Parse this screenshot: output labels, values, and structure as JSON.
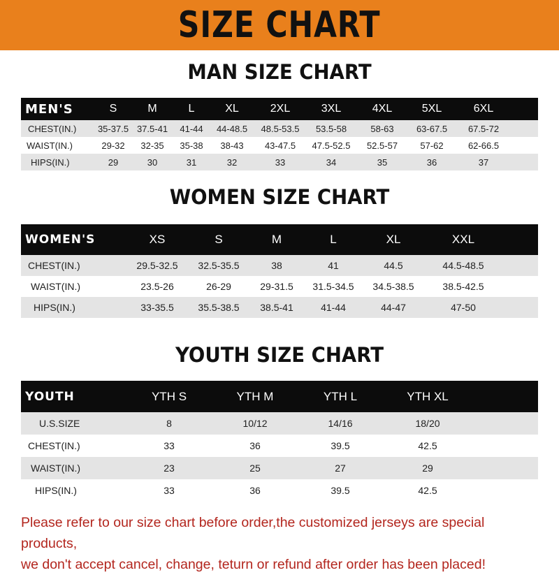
{
  "banner": {
    "title": "SIZE CHART",
    "color": "#e9801c"
  },
  "men": {
    "title": "MAN SIZE CHART",
    "header": [
      "MEN'S",
      "S",
      "M",
      "L",
      "XL",
      "2XL",
      "3XL",
      "4XL",
      "5XL",
      "6XL"
    ],
    "rows": [
      [
        "CHEST(IN.)",
        "35-37.5",
        "37.5-41",
        "41-44",
        "44-48.5",
        "48.5-53.5",
        "53.5-58",
        "58-63",
        "63-67.5",
        "67.5-72"
      ],
      [
        "WAIST(IN.)",
        "29-32",
        "32-35",
        "35-38",
        "38-43",
        "43-47.5",
        "47.5-52.5",
        "52.5-57",
        "57-62",
        "62-66.5"
      ],
      [
        "HIPS(IN.)",
        "29",
        "30",
        "31",
        "32",
        "33",
        "34",
        "35",
        "36",
        "37"
      ]
    ]
  },
  "women": {
    "title": "WOMEN SIZE CHART",
    "header": [
      "WOMEN'S",
      "XS",
      "S",
      "M",
      "L",
      "XL",
      "XXL"
    ],
    "rows": [
      [
        "CHEST(IN.)",
        "29.5-32.5",
        "32.5-35.5",
        "38",
        "41",
        "44.5",
        "44.5-48.5"
      ],
      [
        "WAIST(IN.)",
        "23.5-26",
        "26-29",
        "29-31.5",
        "31.5-34.5",
        "34.5-38.5",
        "38.5-42.5"
      ],
      [
        "HIPS(IN.)",
        "33-35.5",
        "35.5-38.5",
        "38.5-41",
        "41-44",
        "44-47",
        "47-50"
      ]
    ]
  },
  "youth": {
    "title": "YOUTH SIZE CHART",
    "header": [
      "YOUTH",
      "YTH S",
      "YTH M",
      "YTH L",
      "YTH XL"
    ],
    "rows": [
      [
        "U.S.SIZE",
        "8",
        "10/12",
        "14/16",
        "18/20"
      ],
      [
        "CHEST(IN.)",
        "33",
        "36",
        "39.5",
        "42.5"
      ],
      [
        "WAIST(IN.)",
        "23",
        "25",
        "27",
        "29"
      ],
      [
        "HIPS(IN.)",
        "33",
        "36",
        "39.5",
        "42.5"
      ]
    ]
  },
  "footer": {
    "line1": "Please refer to our size chart before order,the customized jerseys are special products,",
    "line2": "we don't accept cancel, change, teturn or refund after order has been placed!",
    "color": "#b3261e"
  }
}
